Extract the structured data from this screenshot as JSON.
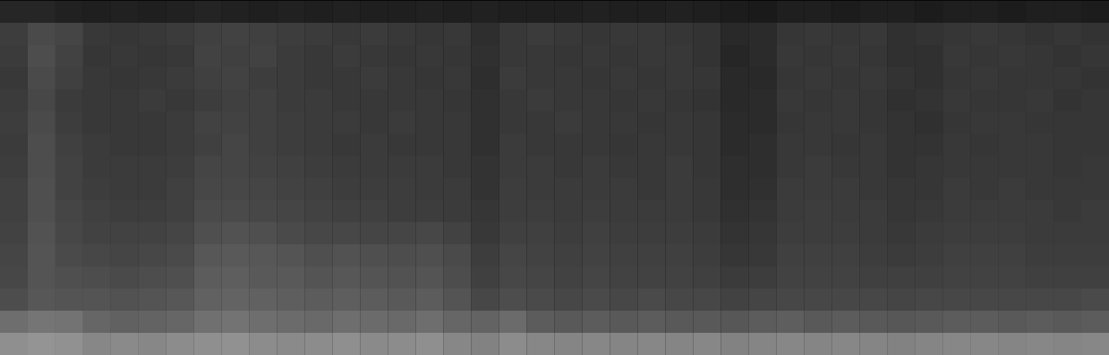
{
  "chart_data": {
    "type": "heatmap",
    "tick_labels": false,
    "zlim": [
      0,
      10
    ],
    "colors": [
      "#000000",
      "#ffffff"
    ],
    "cells": [
      [
        1.5,
        1.5,
        1.3,
        1.2,
        1.3,
        1.2,
        1.3,
        1.4,
        1.3,
        1.2,
        1.3,
        1.2,
        1.3,
        1.2,
        1.2,
        1.3,
        1.2,
        1.3,
        1.2,
        1.2,
        1.2,
        1.3,
        1.2,
        1.2,
        1.3,
        1.2,
        1.1,
        1.0,
        1.2,
        1.2,
        1.1,
        1.2,
        1.2,
        1.1,
        1.2,
        1.2,
        1.1,
        1.2,
        1.2,
        1.1
      ],
      [
        2.4,
        2.9,
        2.7,
        2.2,
        2.1,
        2.2,
        2.3,
        2.5,
        2.6,
        2.5,
        2.4,
        2.3,
        2.2,
        2.3,
        2.2,
        2.1,
        2.2,
        1.8,
        2.2,
        2.3,
        2.2,
        2.1,
        2.2,
        2.2,
        2.1,
        2.0,
        1.6,
        1.7,
        2.1,
        2.2,
        2.1,
        2.2,
        1.9,
        2.0,
        2.1,
        2.2,
        2.1,
        2.0,
        2.1,
        2.0
      ],
      [
        2.3,
        3.0,
        2.6,
        2.1,
        2.2,
        2.1,
        2.2,
        2.6,
        2.5,
        2.6,
        2.3,
        2.2,
        2.3,
        2.2,
        2.1,
        2.2,
        2.1,
        1.9,
        2.2,
        2.2,
        2.1,
        2.2,
        2.1,
        2.2,
        2.2,
        2.0,
        1.5,
        1.7,
        2.2,
        2.1,
        2.2,
        2.1,
        1.9,
        1.9,
        2.2,
        2.1,
        2.2,
        2.1,
        2.0,
        2.1
      ],
      [
        2.2,
        2.9,
        2.5,
        2.2,
        2.1,
        2.2,
        2.3,
        2.5,
        2.6,
        2.4,
        2.3,
        2.2,
        2.2,
        2.3,
        2.2,
        2.1,
        2.2,
        1.8,
        2.3,
        2.2,
        2.2,
        2.1,
        2.2,
        2.1,
        2.2,
        2.1,
        1.6,
        1.6,
        2.1,
        2.2,
        2.1,
        2.2,
        2.0,
        1.9,
        2.1,
        2.2,
        2.1,
        2.1,
        2.1,
        2.0
      ],
      [
        2.3,
        2.8,
        2.3,
        2.2,
        2.2,
        2.3,
        2.2,
        2.4,
        2.5,
        2.5,
        2.3,
        2.3,
        2.2,
        2.2,
        2.2,
        2.2,
        2.1,
        1.9,
        2.2,
        2.3,
        2.2,
        2.2,
        2.1,
        2.2,
        2.1,
        2.0,
        1.6,
        1.7,
        2.2,
        2.1,
        2.2,
        2.1,
        1.9,
        2.0,
        2.2,
        2.1,
        2.1,
        2.2,
        2.0,
        2.1
      ],
      [
        2.4,
        2.9,
        2.4,
        2.2,
        2.2,
        2.2,
        2.3,
        2.6,
        2.6,
        2.5,
        2.4,
        2.3,
        2.3,
        2.2,
        2.3,
        2.2,
        2.2,
        1.9,
        2.2,
        2.2,
        2.3,
        2.2,
        2.2,
        2.1,
        2.2,
        2.1,
        1.7,
        1.7,
        2.1,
        2.2,
        2.2,
        2.1,
        2.0,
        1.9,
        2.1,
        2.2,
        2.2,
        2.1,
        2.1,
        2.1
      ],
      [
        2.3,
        3.0,
        2.5,
        2.3,
        2.2,
        2.2,
        2.3,
        2.5,
        2.7,
        2.5,
        2.4,
        2.3,
        2.2,
        2.3,
        2.2,
        2.2,
        2.2,
        1.9,
        2.3,
        2.2,
        2.2,
        2.2,
        2.1,
        2.2,
        2.2,
        2.1,
        1.7,
        1.8,
        2.2,
        2.2,
        2.1,
        2.2,
        2.0,
        2.0,
        2.2,
        2.1,
        2.2,
        2.2,
        2.1,
        2.1
      ],
      [
        2.4,
        3.0,
        2.6,
        2.3,
        2.3,
        2.3,
        2.4,
        2.7,
        2.7,
        2.6,
        2.5,
        2.4,
        2.3,
        2.3,
        2.3,
        2.3,
        2.2,
        2.0,
        2.3,
        2.3,
        2.2,
        2.3,
        2.2,
        2.2,
        2.3,
        2.1,
        1.8,
        1.8,
        2.2,
        2.3,
        2.2,
        2.2,
        2.0,
        2.1,
        2.2,
        2.2,
        2.2,
        2.2,
        2.1,
        2.2
      ],
      [
        2.5,
        3.1,
        2.6,
        2.4,
        2.3,
        2.3,
        2.5,
        2.8,
        2.8,
        2.7,
        2.6,
        2.5,
        2.4,
        2.4,
        2.4,
        2.3,
        2.3,
        2.0,
        2.4,
        2.3,
        2.3,
        2.3,
        2.3,
        2.2,
        2.3,
        2.2,
        1.8,
        1.9,
        2.3,
        2.3,
        2.3,
        2.2,
        2.1,
        2.1,
        2.3,
        2.2,
        2.3,
        2.2,
        2.2,
        2.2
      ],
      [
        2.5,
        3.1,
        2.7,
        2.5,
        2.4,
        2.4,
        2.5,
        2.9,
        2.9,
        2.8,
        2.7,
        2.6,
        2.5,
        2.5,
        2.4,
        2.4,
        2.3,
        2.1,
        2.4,
        2.4,
        2.3,
        2.4,
        2.3,
        2.3,
        2.3,
        2.2,
        1.9,
        2.0,
        2.3,
        2.4,
        2.3,
        2.3,
        2.1,
        2.2,
        2.3,
        2.3,
        2.3,
        2.3,
        2.2,
        2.3
      ],
      [
        2.6,
        3.2,
        2.8,
        2.6,
        2.6,
        2.6,
        2.7,
        3.1,
        3.2,
        3.1,
        2.9,
        2.8,
        2.8,
        2.7,
        2.7,
        2.8,
        2.6,
        2.2,
        2.5,
        2.5,
        2.4,
        2.5,
        2.4,
        2.4,
        2.4,
        2.3,
        2.0,
        2.1,
        2.4,
        2.4,
        2.4,
        2.3,
        2.2,
        2.3,
        2.4,
        2.4,
        2.4,
        2.3,
        2.3,
        2.3
      ],
      [
        2.7,
        3.3,
        2.9,
        2.8,
        2.7,
        2.8,
        2.9,
        3.4,
        3.5,
        3.4,
        3.3,
        3.1,
        3.2,
        3.1,
        3.0,
        3.1,
        2.9,
        2.4,
        2.7,
        2.6,
        2.5,
        2.6,
        2.5,
        2.5,
        2.5,
        2.4,
        2.1,
        2.2,
        2.5,
        2.5,
        2.5,
        2.4,
        2.3,
        2.4,
        2.5,
        2.5,
        2.5,
        2.4,
        2.4,
        2.4
      ],
      [
        2.8,
        3.3,
        3.1,
        3.0,
        2.9,
        3.0,
        3.1,
        3.6,
        3.7,
        3.5,
        3.5,
        3.3,
        3.4,
        3.3,
        3.2,
        3.3,
        3.0,
        2.5,
        2.8,
        2.7,
        2.6,
        2.7,
        2.6,
        2.6,
        2.6,
        2.5,
        2.3,
        2.4,
        2.6,
        2.6,
        2.6,
        2.5,
        2.5,
        2.5,
        2.6,
        2.6,
        2.6,
        2.5,
        2.5,
        2.5
      ],
      [
        3.0,
        3.4,
        3.3,
        3.3,
        3.2,
        3.3,
        3.4,
        3.8,
        3.9,
        3.8,
        3.7,
        3.6,
        3.7,
        3.6,
        3.5,
        3.6,
        3.3,
        2.8,
        3.0,
        2.9,
        2.8,
        2.9,
        2.8,
        2.9,
        2.8,
        2.8,
        2.6,
        2.7,
        2.8,
        2.8,
        2.8,
        2.8,
        2.7,
        2.8,
        2.8,
        2.8,
        2.8,
        2.8,
        2.8,
        2.9
      ],
      [
        4.3,
        4.6,
        4.5,
        4.0,
        3.8,
        3.9,
        4.0,
        4.4,
        4.5,
        4.3,
        4.2,
        4.1,
        4.3,
        4.2,
        4.1,
        4.3,
        4.0,
        3.9,
        4.2,
        3.6,
        3.5,
        3.6,
        3.5,
        3.6,
        3.5,
        3.5,
        3.4,
        3.6,
        3.7,
        3.5,
        3.6,
        3.5,
        3.4,
        3.5,
        3.6,
        3.6,
        3.5,
        3.6,
        3.5,
        3.6
      ],
      [
        5.6,
        5.8,
        5.7,
        5.3,
        5.4,
        5.3,
        5.5,
        5.6,
        5.7,
        5.5,
        5.4,
        5.5,
        5.6,
        5.4,
        5.5,
        5.6,
        5.3,
        5.1,
        5.5,
        5.3,
        5.2,
        5.3,
        5.2,
        5.3,
        5.2,
        5.3,
        5.1,
        5.2,
        5.3,
        5.2,
        5.3,
        5.2,
        5.1,
        5.2,
        5.3,
        5.3,
        5.2,
        5.3,
        5.2,
        5.3
      ]
    ]
  }
}
